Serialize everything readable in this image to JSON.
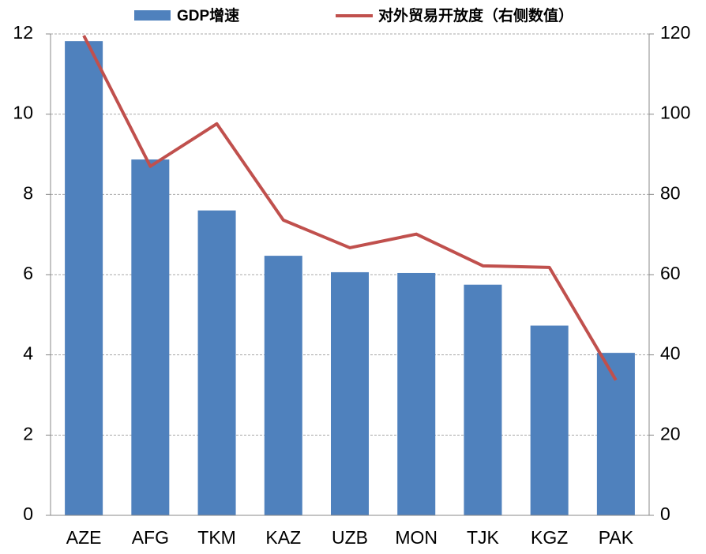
{
  "chart_data": {
    "type": "bar_line",
    "categories": [
      "AZE",
      "AFG",
      "TKM",
      "KAZ",
      "UZB",
      "MON",
      "TJK",
      "KGZ",
      "PAK"
    ],
    "series": [
      {
        "name": "GDP增速",
        "color": "#4f81bd",
        "type": "bar",
        "values": [
          11.82,
          8.87,
          7.6,
          6.47,
          6.06,
          6.04,
          5.75,
          4.73,
          4.05
        ]
      },
      {
        "name": "对外贸易开放度（右侧数值）",
        "color": "#c0504d",
        "type": "line",
        "axis": "y2",
        "values": [
          119.6,
          87,
          97.6,
          73.6,
          66.7,
          70.1,
          62.2,
          61.8,
          33.7
        ]
      }
    ],
    "ylim": [
      0,
      12
    ],
    "yticks": [
      0,
      2,
      4,
      6,
      8,
      10,
      12
    ],
    "y2lim": [
      0,
      120
    ],
    "y2ticks": [
      0,
      20,
      40,
      60,
      80,
      100,
      120
    ],
    "grid": true,
    "legend": "top"
  }
}
